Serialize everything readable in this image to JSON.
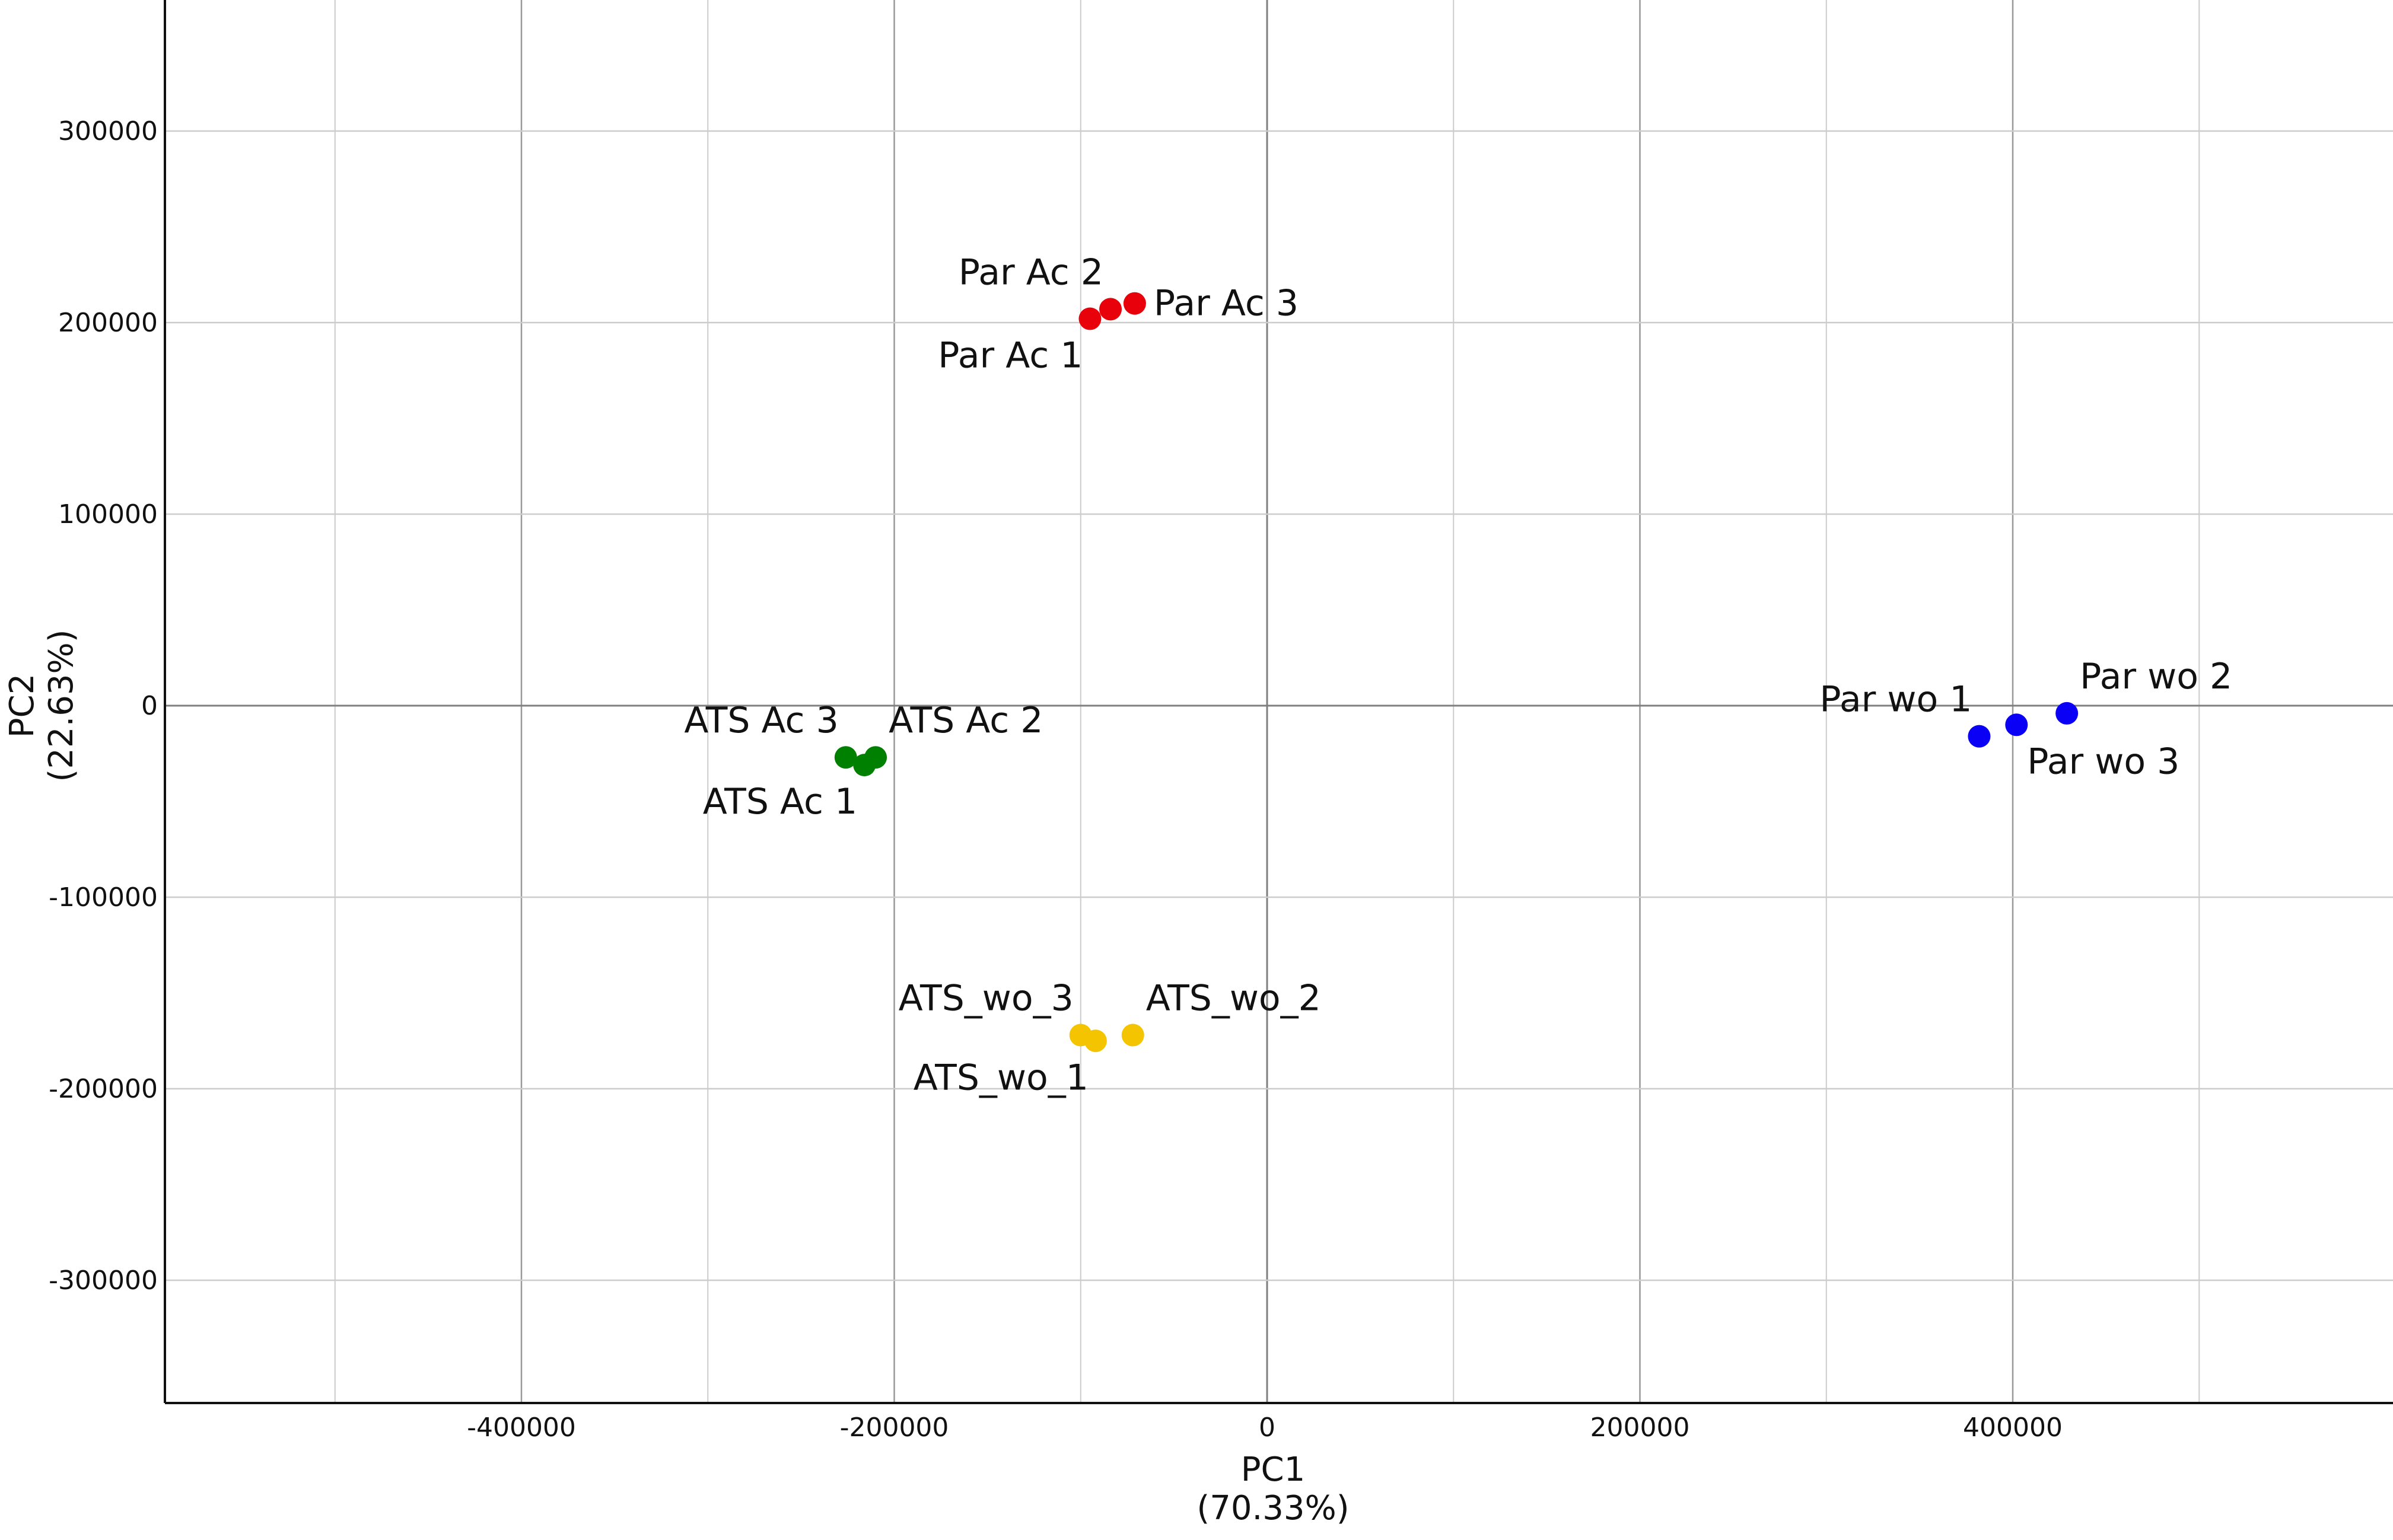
{
  "chart_data": {
    "type": "scatter",
    "title": "",
    "xlabel": "PC1",
    "xlabel_sub": "(70.33%)",
    "ylabel": "PC2",
    "ylabel_sub": "(22.63%)",
    "xlim": [
      -590000,
      600000
    ],
    "ylim": [
      -365000,
      365000
    ],
    "grid": true,
    "legend": "none",
    "x_ticks": [
      -400000,
      -200000,
      0,
      200000,
      400000
    ],
    "x_tick_labels": [
      "-400000",
      "-200000",
      "0",
      "200000",
      "400000"
    ],
    "x_minor_gridlines": [
      -500000,
      -300000,
      -100000,
      100000,
      300000,
      500000
    ],
    "y_ticks": [
      300000,
      200000,
      100000,
      0,
      -100000,
      -200000,
      -300000
    ],
    "y_tick_labels": [
      "300000",
      "200000",
      "100000",
      "0",
      "-100000",
      "-200000",
      "-300000"
    ],
    "series": [
      {
        "color": "#e8000b",
        "points": [
          {
            "label": "Par Ac 1",
            "x": -95000,
            "y": 202000,
            "anchor": "below-left"
          },
          {
            "label": "Par Ac 2",
            "x": -84000,
            "y": 207000,
            "anchor": "above-left"
          },
          {
            "label": "Par Ac 3",
            "x": -71000,
            "y": 210000,
            "anchor": "right"
          }
        ]
      },
      {
        "color": "#008000",
        "points": [
          {
            "label": "ATS Ac 1",
            "x": -216000,
            "y": -31000,
            "anchor": "below-left"
          },
          {
            "label": "ATS Ac 2",
            "x": -210000,
            "y": -27000,
            "anchor": "above-right"
          },
          {
            "label": "ATS Ac 3",
            "x": -226000,
            "y": -27000,
            "anchor": "above-left"
          }
        ]
      },
      {
        "color": "#f5c400",
        "points": [
          {
            "label": "ATS_wo_1",
            "x": -92000,
            "y": -175000,
            "anchor": "below-left"
          },
          {
            "label": "ATS_wo_2",
            "x": -72000,
            "y": -172000,
            "anchor": "above-right"
          },
          {
            "label": "ATS_wo_3",
            "x": -100000,
            "y": -172000,
            "anchor": "above-left"
          }
        ]
      },
      {
        "color": "#0a00f5",
        "points": [
          {
            "label": "Par wo 1",
            "x": 382000,
            "y": -16000,
            "anchor": "above-left"
          },
          {
            "label": "Par wo 2",
            "x": 429000,
            "y": -4000,
            "anchor": "above-right"
          },
          {
            "label": "Par wo 3",
            "x": 402000,
            "y": -10000,
            "anchor": "below-right"
          }
        ]
      }
    ],
    "colors": {
      "gridline": "#cccccc",
      "major_gridline": "#999999",
      "zero_line": "#7f7f7f",
      "axis": "#111111"
    }
  }
}
